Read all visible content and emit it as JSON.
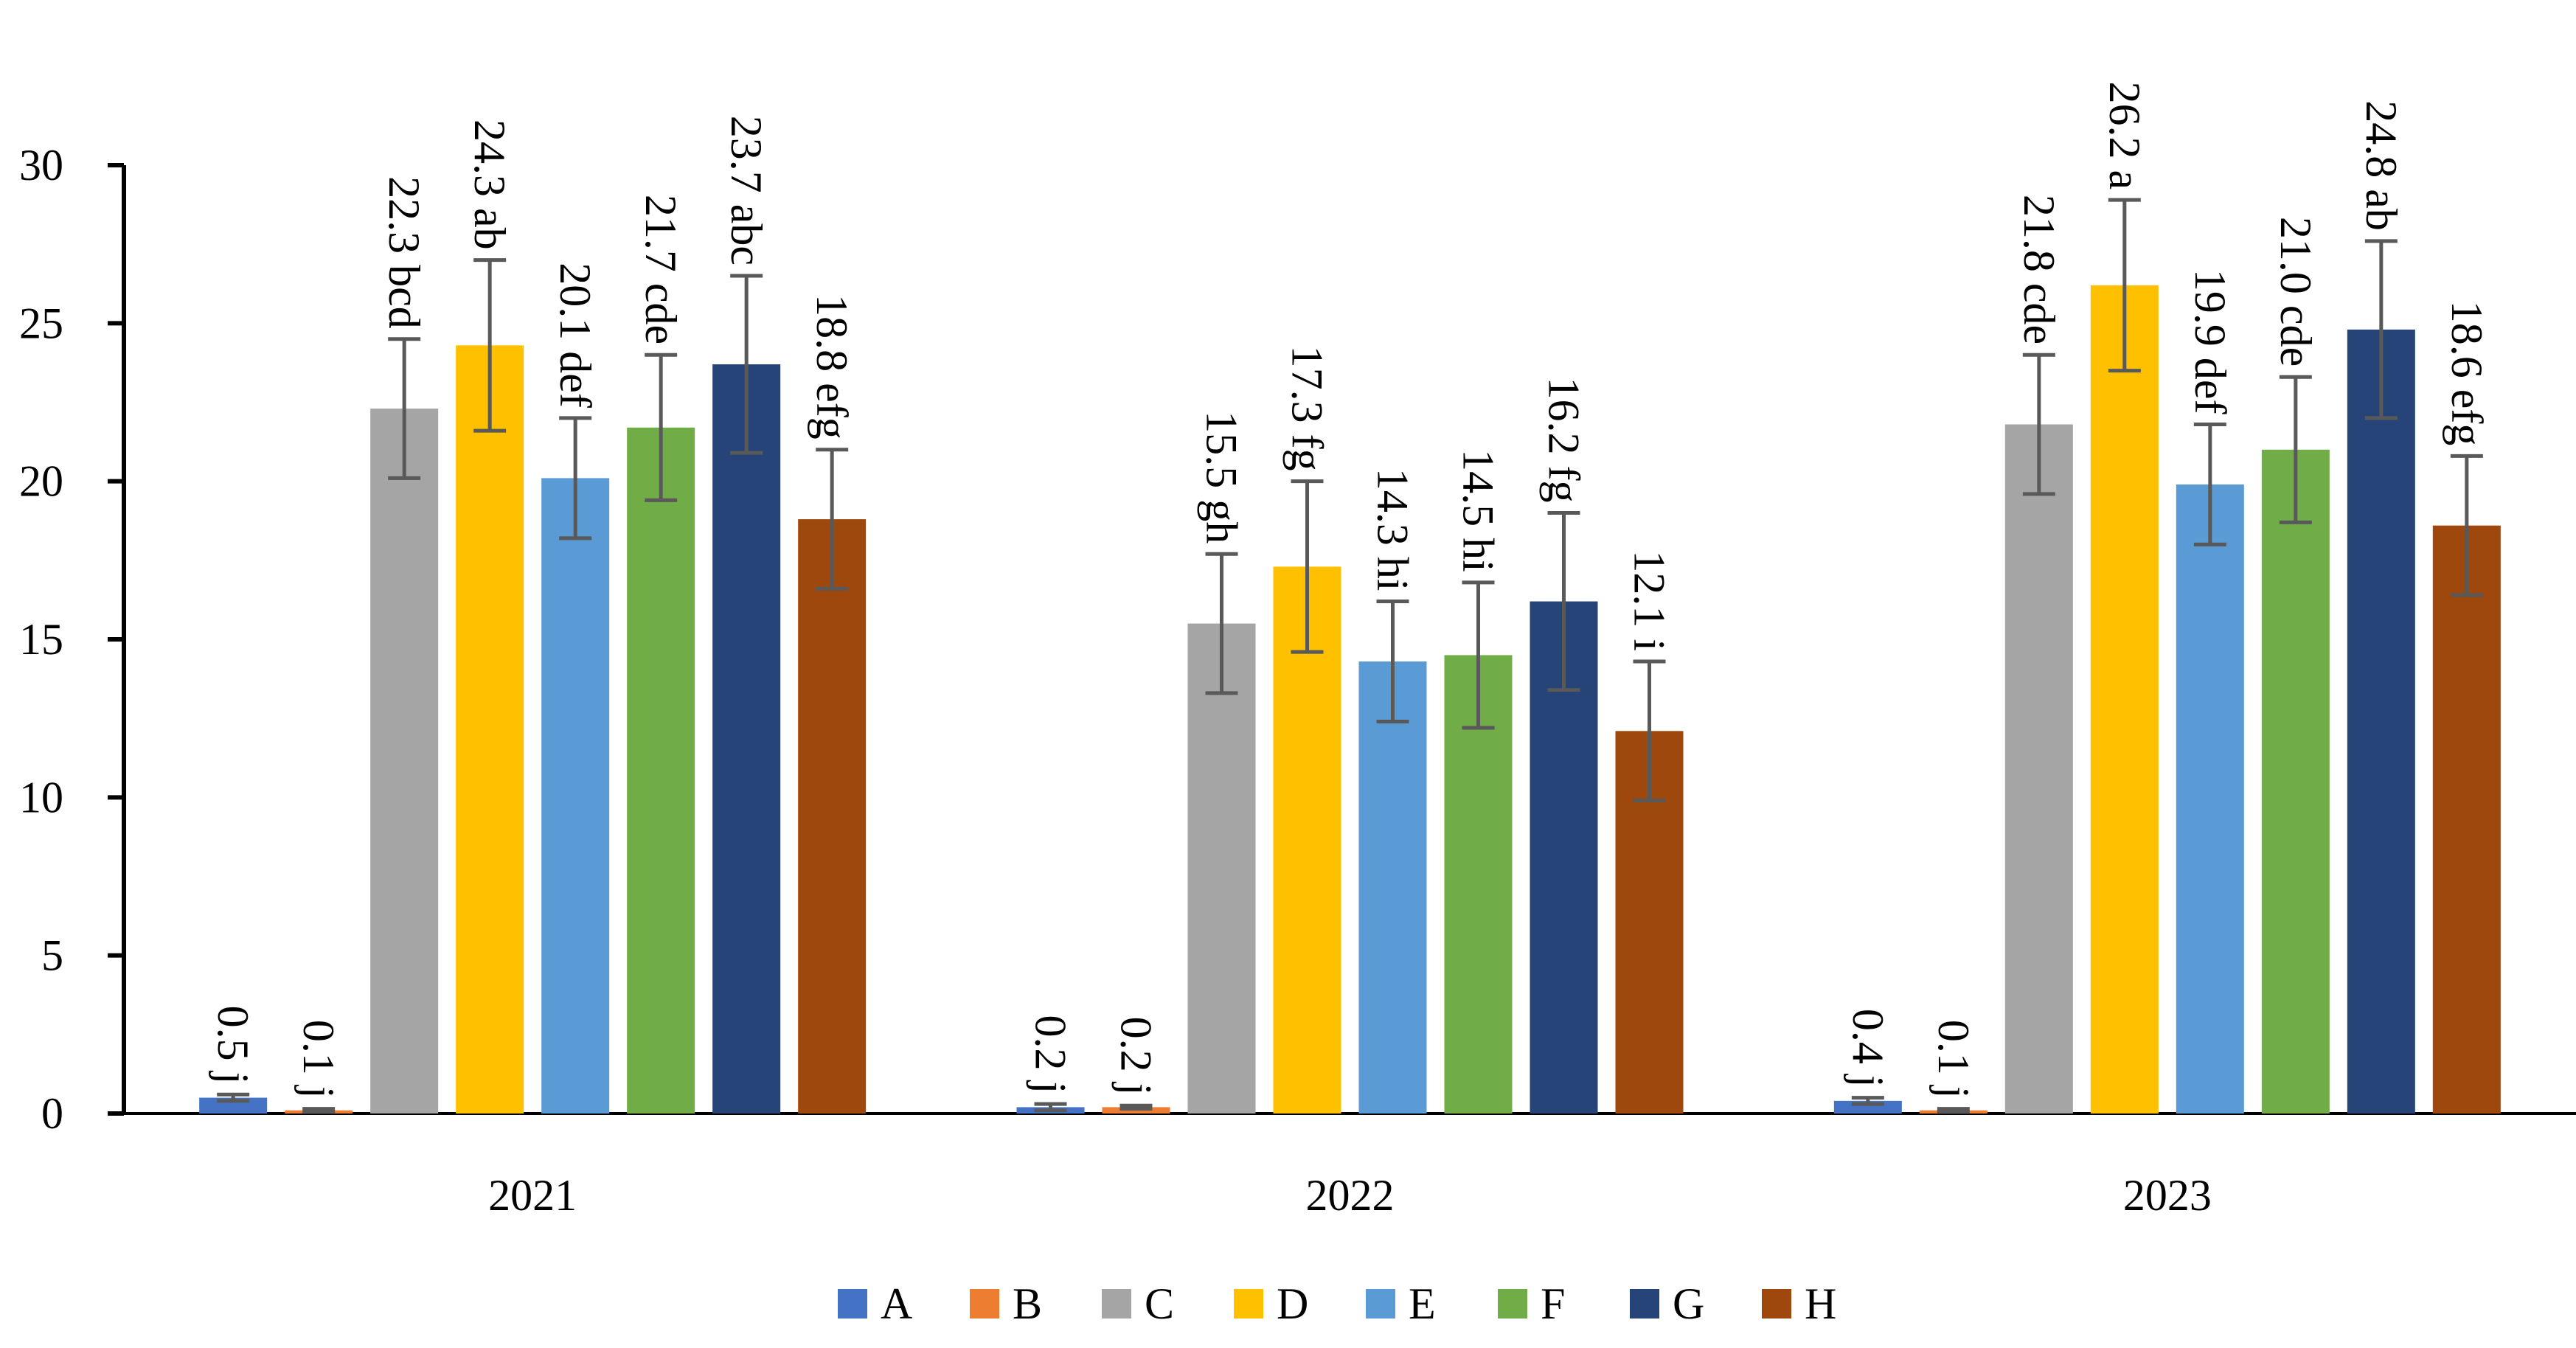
{
  "chart_data": {
    "type": "bar",
    "title": "",
    "xlabel": "",
    "ylabel": "",
    "ylim": [
      0,
      30
    ],
    "yticks": [
      "0",
      "5",
      "10",
      "15",
      "20",
      "25",
      "30"
    ],
    "grid": false,
    "legend_position": "bottom",
    "categories": [
      "2021",
      "2022",
      "2023"
    ],
    "series": [
      {
        "name": "A",
        "color": "#4472C4",
        "values": [
          0.5,
          0.2,
          0.4
        ],
        "errors": [
          0.1,
          0.1,
          0.1
        ],
        "labels": [
          "0.5 j",
          "0.2 j",
          "0.4 j"
        ]
      },
      {
        "name": "B",
        "color": "#ED7D31",
        "values": [
          0.1,
          0.2,
          0.1
        ],
        "errors": [
          0.05,
          0.05,
          0.05
        ],
        "labels": [
          "0.1 j",
          "0.2 j",
          "0.1 j"
        ]
      },
      {
        "name": "C",
        "color": "#A5A5A5",
        "values": [
          22.3,
          15.5,
          21.8
        ],
        "errors": [
          2.2,
          2.2,
          2.2
        ],
        "labels": [
          "22.3 bcd",
          "15.5 gh",
          "21.8 cde"
        ]
      },
      {
        "name": "D",
        "color": "#FFC000",
        "values": [
          24.3,
          17.3,
          26.2
        ],
        "errors": [
          2.7,
          2.7,
          2.7
        ],
        "labels": [
          "24.3 ab",
          "17.3 fg",
          "26.2 a"
        ]
      },
      {
        "name": "E",
        "color": "#5B9BD5",
        "values": [
          20.1,
          14.3,
          19.9
        ],
        "errors": [
          1.9,
          1.9,
          1.9
        ],
        "labels": [
          "20.1 def",
          "14.3 hi",
          "19.9 def"
        ]
      },
      {
        "name": "F",
        "color": "#70AD47",
        "values": [
          21.7,
          14.5,
          21.0
        ],
        "errors": [
          2.3,
          2.3,
          2.3
        ],
        "labels": [
          "21.7 cde",
          "14.5 hi",
          "21.0 cde"
        ]
      },
      {
        "name": "G",
        "color": "#264478",
        "values": [
          23.7,
          16.2,
          24.8
        ],
        "errors": [
          2.8,
          2.8,
          2.8
        ],
        "labels": [
          "23.7 abc",
          "16.2 fg",
          "24.8 ab"
        ]
      },
      {
        "name": "H",
        "color": "#9E480E",
        "values": [
          18.8,
          12.1,
          18.6
        ],
        "errors": [
          2.2,
          2.2,
          2.2
        ],
        "labels": [
          "18.8 efg",
          "12.1 i",
          "18.6 efg"
        ]
      }
    ]
  }
}
